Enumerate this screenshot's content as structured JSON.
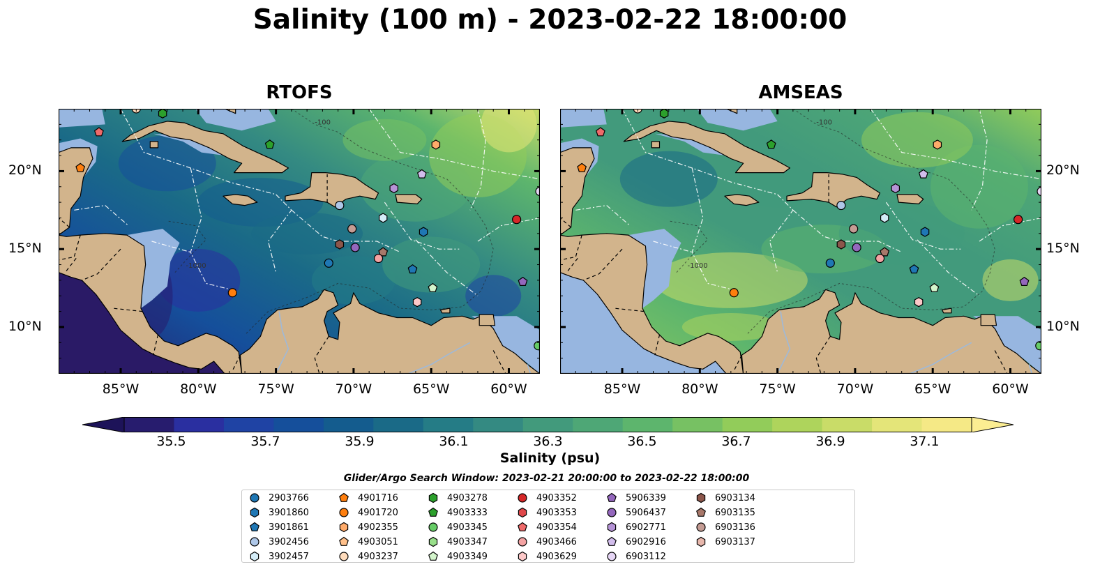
{
  "title": "Salinity (100 m) - 2023-02-22 18:00:00",
  "panels": [
    {
      "id": "rtofs",
      "title": "RTOFS"
    },
    {
      "id": "amseas",
      "title": "AMSEAS"
    }
  ],
  "map": {
    "extent": {
      "lon_min": -89,
      "lon_max": -58,
      "lat_min": 7,
      "lat_max": 24
    },
    "lon_ticks": [
      "85°W",
      "80°W",
      "75°W",
      "70°W",
      "65°W",
      "60°W"
    ],
    "lat_ticks": [
      "20°N",
      "15°N",
      "10°N"
    ],
    "land_color": "#d2b48c",
    "shelf_color": "#97b6e0",
    "pacific_color": "#2a1a66",
    "contour_labels": [
      "-100",
      "-1000"
    ],
    "basemap_features": [
      "coastline",
      "country-borders",
      "rivers",
      "bathymetry-contours",
      "eez-boundaries"
    ]
  },
  "colorbar": {
    "label": "Salinity (psu)",
    "min": 35.4,
    "max": 37.2,
    "extend": "both",
    "ticks": [
      "35.5",
      "35.7",
      "35.9",
      "36.1",
      "36.3",
      "36.5",
      "36.7",
      "36.9",
      "37.1"
    ],
    "tick_values": [
      35.5,
      35.7,
      35.9,
      36.1,
      36.3,
      36.5,
      36.7,
      36.9,
      37.1
    ],
    "colors": [
      "#271c6e",
      "#2a2fa0",
      "#1f43a4",
      "#154f9b",
      "#145c8e",
      "#1a6a87",
      "#257c86",
      "#348a82",
      "#429a7c",
      "#4ea776",
      "#5db56d",
      "#77c163",
      "#92cc5a",
      "#aed45c",
      "#c9dc68",
      "#e4e579",
      "#f5e986"
    ],
    "under_color": "#1d1359",
    "over_color": "#fbed92"
  },
  "search_window": "Glider/Argo Search Window: 2023-02-21 20:00:00 to 2023-02-22 18:00:00",
  "legend_items": [
    {
      "label": "2903766",
      "marker": "circle",
      "color": "#1f77b4"
    },
    {
      "label": "3901860",
      "marker": "hexagon",
      "color": "#1f77b4"
    },
    {
      "label": "3901861",
      "marker": "pentagon",
      "color": "#1f77b4"
    },
    {
      "label": "3902456",
      "marker": "circle",
      "color": "#aec7e8"
    },
    {
      "label": "3902457",
      "marker": "hexagon",
      "color": "#d4ecf7"
    },
    {
      "label": "4901716",
      "marker": "pentagon",
      "color": "#ff7f0e"
    },
    {
      "label": "4901720",
      "marker": "circle",
      "color": "#ff7f0e"
    },
    {
      "label": "4902355",
      "marker": "hexagon",
      "color": "#ffab6a"
    },
    {
      "label": "4903051",
      "marker": "pentagon",
      "color": "#ffc08a"
    },
    {
      "label": "4903237",
      "marker": "circle",
      "color": "#ffdcbc"
    },
    {
      "label": "4903278",
      "marker": "hexagon",
      "color": "#2ca02c"
    },
    {
      "label": "4903333",
      "marker": "pentagon",
      "color": "#2ca02c"
    },
    {
      "label": "4903345",
      "marker": "circle",
      "color": "#66cc66"
    },
    {
      "label": "4903347",
      "marker": "hexagon",
      "color": "#98df8a"
    },
    {
      "label": "4903349",
      "marker": "pentagon",
      "color": "#d4f5cc"
    },
    {
      "label": "4903352",
      "marker": "circle",
      "color": "#d62728"
    },
    {
      "label": "4903353",
      "marker": "hexagon",
      "color": "#e0484a"
    },
    {
      "label": "4903354",
      "marker": "pentagon",
      "color": "#ef6a6a"
    },
    {
      "label": "4903466",
      "marker": "circle",
      "color": "#f4a3a3"
    },
    {
      "label": "4903629",
      "marker": "hexagon",
      "color": "#fcc8c8"
    },
    {
      "label": "5906339",
      "marker": "pentagon",
      "color": "#9467bd"
    },
    {
      "label": "5906437",
      "marker": "circle",
      "color": "#9467bd"
    },
    {
      "label": "6902771",
      "marker": "hexagon",
      "color": "#b593d6"
    },
    {
      "label": "6902916",
      "marker": "pentagon",
      "color": "#d2bdec"
    },
    {
      "label": "6903112",
      "marker": "circle",
      "color": "#e6d6f5"
    },
    {
      "label": "6903134",
      "marker": "hexagon",
      "color": "#8c564b"
    },
    {
      "label": "6903135",
      "marker": "pentagon",
      "color": "#a8786a"
    },
    {
      "label": "6903136",
      "marker": "circle",
      "color": "#c49c94"
    },
    {
      "label": "6903137",
      "marker": "hexagon",
      "color": "#e8b8ad"
    }
  ],
  "floats": [
    {
      "id": "4901716",
      "lon": -87.6,
      "lat": 20.2
    },
    {
      "id": "4903354",
      "lon": -86.4,
      "lat": 22.5
    },
    {
      "id": "4903237",
      "lon": -84.0,
      "lat": 24.0
    },
    {
      "id": "4903278",
      "lon": -82.3,
      "lat": 23.7
    },
    {
      "id": "4903333",
      "lon": -75.4,
      "lat": 21.7
    },
    {
      "id": "4902355",
      "lon": -64.7,
      "lat": 21.7
    },
    {
      "id": "6902916",
      "lon": -65.6,
      "lat": 19.8
    },
    {
      "id": "6902771",
      "lon": -67.4,
      "lat": 18.9
    },
    {
      "id": "6903112",
      "lon": -58.0,
      "lat": 18.7
    },
    {
      "id": "3902456",
      "lon": -70.9,
      "lat": 17.8
    },
    {
      "id": "3902457",
      "lon": -68.1,
      "lat": 17.0
    },
    {
      "id": "4903352",
      "lon": -59.5,
      "lat": 16.9
    },
    {
      "id": "6903136",
      "lon": -70.1,
      "lat": 16.3
    },
    {
      "id": "3901860",
      "lon": -65.5,
      "lat": 16.1
    },
    {
      "id": "6903134",
      "lon": -70.9,
      "lat": 15.3
    },
    {
      "id": "5906437",
      "lon": -69.9,
      "lat": 15.1
    },
    {
      "id": "6903135",
      "lon": -68.1,
      "lat": 14.8
    },
    {
      "id": "4903466",
      "lon": -68.4,
      "lat": 14.4
    },
    {
      "id": "2903766",
      "lon": -71.6,
      "lat": 14.1
    },
    {
      "id": "3901861",
      "lon": -66.2,
      "lat": 13.7
    },
    {
      "id": "5906339",
      "lon": -59.1,
      "lat": 12.9
    },
    {
      "id": "4903349",
      "lon": -64.9,
      "lat": 12.5
    },
    {
      "id": "4901720",
      "lon": -77.8,
      "lat": 12.2
    },
    {
      "id": "4903629",
      "lon": -65.9,
      "lat": 11.6
    },
    {
      "id": "4903345",
      "lon": -58.1,
      "lat": 8.8
    }
  ]
}
